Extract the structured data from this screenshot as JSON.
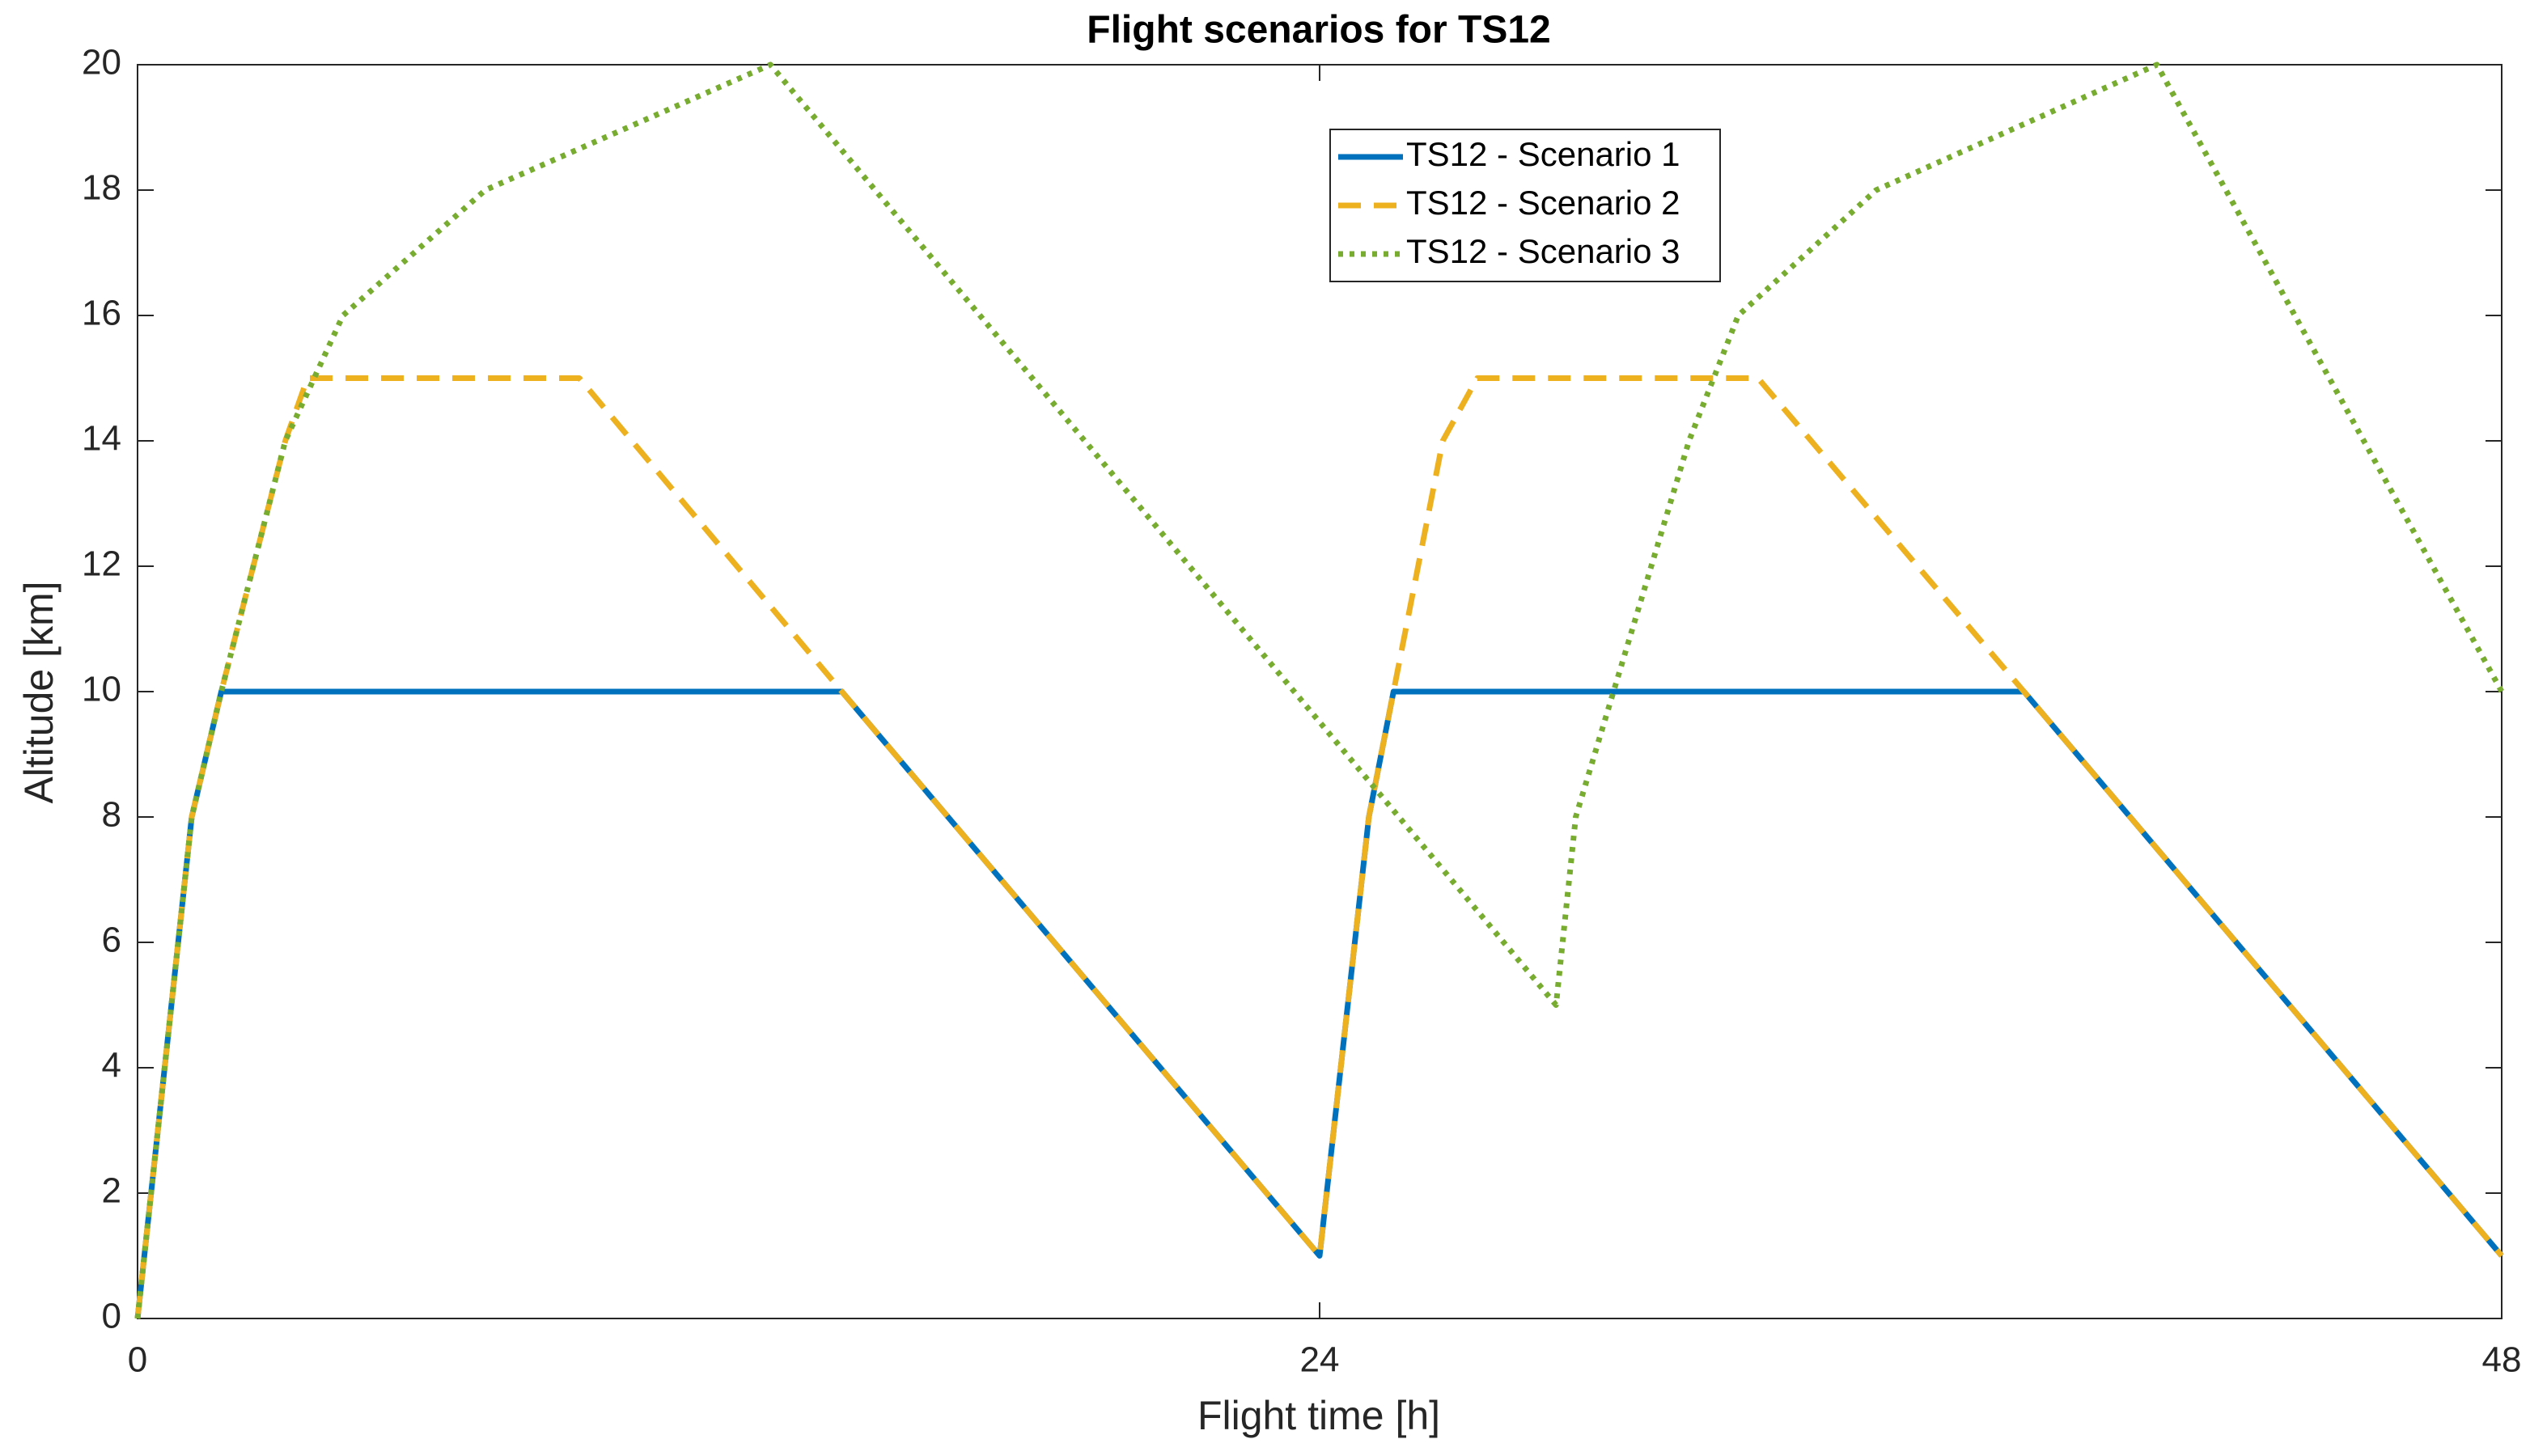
{
  "chart_data": {
    "type": "line",
    "title": "Flight scenarios for TS12",
    "x_label": "Flight time [h]",
    "y_label": "Altitude [km]",
    "xlim": [
      0,
      48
    ],
    "xticks": [
      0,
      24,
      48
    ],
    "ylim": [
      0,
      20
    ],
    "yticks": [
      0,
      2,
      4,
      6,
      8,
      10,
      12,
      14,
      16,
      18,
      20
    ],
    "series": [
      {
        "name": "TS12 - Scenario 1",
        "color": "#0072BD",
        "style": "solid",
        "x": [
          0,
          1.1,
          1.7,
          14.3,
          24,
          25,
          25.5,
          38.3,
          48
        ],
        "values": [
          0,
          8,
          10,
          10,
          1,
          8,
          10,
          10,
          1
        ]
      },
      {
        "name": "TS12 - Scenario 2",
        "color": "#EDB120",
        "style": "dashed",
        "x": [
          0,
          1.1,
          1.7,
          3,
          3.45,
          8.97,
          14.3,
          24,
          25,
          25.5,
          26.5,
          27.2,
          32.9,
          38.3,
          48
        ],
        "values": [
          0,
          8,
          10,
          14,
          15,
          15,
          10,
          1,
          8,
          10,
          14,
          15,
          15,
          10,
          1
        ]
      },
      {
        "name": "TS12 - Scenario 3",
        "color": "#77AC30",
        "style": "dotted",
        "x": [
          0,
          1.1,
          1.7,
          3,
          4.17,
          7.06,
          12.85,
          28.8,
          29.2,
          31.5,
          32.5,
          35.3,
          41,
          48
        ],
        "values": [
          0,
          8,
          10,
          14,
          16,
          18,
          20,
          5,
          8,
          14,
          16,
          18,
          20,
          10
        ]
      }
    ]
  }
}
